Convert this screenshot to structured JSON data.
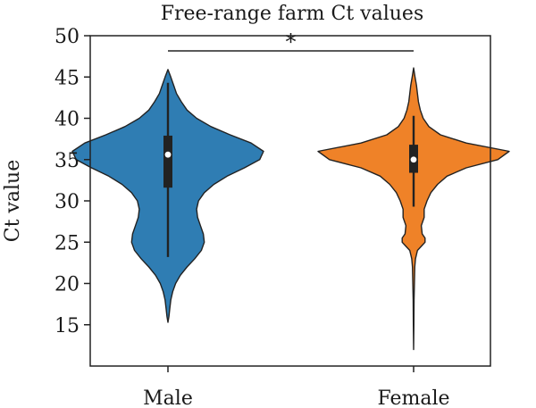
{
  "chart_data": {
    "type": "violin",
    "title": "Free-range farm Ct values",
    "xlabel": "",
    "ylabel": "Ct value",
    "ylim": [
      10,
      50
    ],
    "yticks": [
      15,
      20,
      25,
      30,
      35,
      40,
      45,
      50
    ],
    "categories": [
      "Male",
      "Female"
    ],
    "grid": false,
    "legend": "none",
    "significance": {
      "between": [
        "Male",
        "Female"
      ],
      "label": "*"
    },
    "series": [
      {
        "category": "Male",
        "color": "#2f7db3",
        "median": 35.6,
        "q1": 31.6,
        "q3": 37.9,
        "whisker_low": 23.2,
        "whisker_high": 44.3,
        "range": [
          15.3,
          45.9
        ],
        "density_profile": [
          [
            45.9,
            0.0
          ],
          [
            45.0,
            0.03
          ],
          [
            44.0,
            0.06
          ],
          [
            43.0,
            0.09
          ],
          [
            42.0,
            0.14
          ],
          [
            41.0,
            0.2
          ],
          [
            40.0,
            0.3
          ],
          [
            39.0,
            0.45
          ],
          [
            38.0,
            0.65
          ],
          [
            37.0,
            0.87
          ],
          [
            36.0,
            1.0
          ],
          [
            35.0,
            0.96
          ],
          [
            34.0,
            0.8
          ],
          [
            33.0,
            0.62
          ],
          [
            32.0,
            0.48
          ],
          [
            31.0,
            0.38
          ],
          [
            30.0,
            0.32
          ],
          [
            29.0,
            0.3
          ],
          [
            28.0,
            0.31
          ],
          [
            27.0,
            0.34
          ],
          [
            26.0,
            0.37
          ],
          [
            25.0,
            0.38
          ],
          [
            24.0,
            0.35
          ],
          [
            23.0,
            0.28
          ],
          [
            22.0,
            0.2
          ],
          [
            21.0,
            0.13
          ],
          [
            20.0,
            0.08
          ],
          [
            19.0,
            0.05
          ],
          [
            18.0,
            0.03
          ],
          [
            17.0,
            0.02
          ],
          [
            16.0,
            0.01
          ],
          [
            15.3,
            0.0
          ]
        ]
      },
      {
        "category": "Female",
        "color": "#ef8228",
        "median": 35.0,
        "q1": 33.4,
        "q3": 36.8,
        "whisker_low": 29.3,
        "whisker_high": 40.3,
        "range": [
          12.0,
          46.1
        ],
        "density_profile": [
          [
            46.1,
            0.0
          ],
          [
            45.0,
            0.015
          ],
          [
            44.0,
            0.03
          ],
          [
            43.0,
            0.04
          ],
          [
            42.0,
            0.05
          ],
          [
            41.0,
            0.07
          ],
          [
            40.0,
            0.1
          ],
          [
            39.0,
            0.16
          ],
          [
            38.0,
            0.28
          ],
          [
            37.0,
            0.55
          ],
          [
            36.0,
            1.0
          ],
          [
            35.0,
            0.88
          ],
          [
            34.0,
            0.55
          ],
          [
            33.0,
            0.35
          ],
          [
            32.0,
            0.25
          ],
          [
            31.0,
            0.18
          ],
          [
            30.0,
            0.14
          ],
          [
            29.0,
            0.11
          ],
          [
            28.0,
            0.11
          ],
          [
            27.0,
            0.08
          ],
          [
            26.0,
            0.09
          ],
          [
            25.5,
            0.12
          ],
          [
            25.0,
            0.12
          ],
          [
            24.5,
            0.08
          ],
          [
            24.0,
            0.04
          ],
          [
            23.0,
            0.02
          ],
          [
            22.0,
            0.012
          ],
          [
            20.0,
            0.008
          ],
          [
            18.0,
            0.005
          ],
          [
            15.0,
            0.003
          ],
          [
            12.0,
            0.0
          ]
        ]
      }
    ]
  }
}
